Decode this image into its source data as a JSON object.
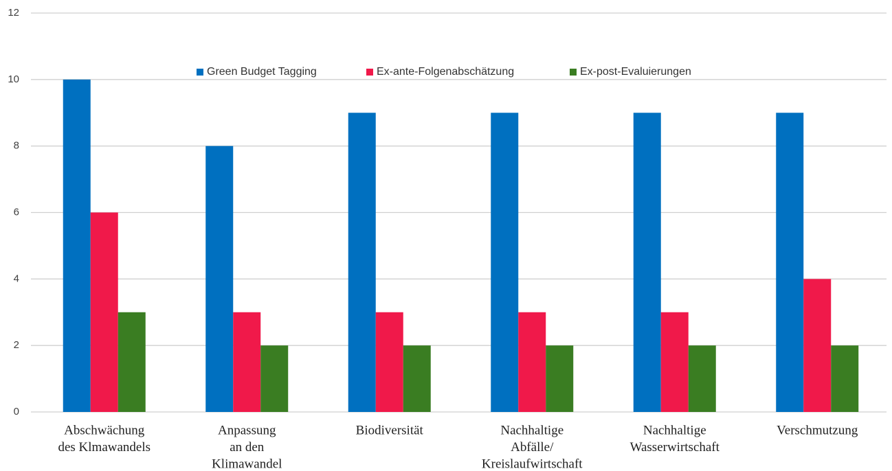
{
  "chart_data": {
    "type": "bar",
    "categories": [
      [
        "Abschwächung",
        "des Klmawandels"
      ],
      [
        "Anpassung",
        "an den",
        "Klimawandel"
      ],
      [
        "Biodiversität"
      ],
      [
        "Nachhaltige",
        "Abfälle/",
        "Kreislaufwirtschaft"
      ],
      [
        "Nachhaltige",
        "Wasserwirtschaft"
      ],
      [
        "Verschmutzung"
      ]
    ],
    "series": [
      {
        "name": "Green Budget Tagging",
        "color": "#0070c0",
        "values": [
          10,
          8,
          9,
          9,
          9,
          9
        ]
      },
      {
        "name": "Ex-ante-Folgenabschätzung",
        "color": "#f0194a",
        "values": [
          6,
          3,
          3,
          3,
          3,
          4
        ]
      },
      {
        "name": "Ex-post-Evaluierungen",
        "color": "#3a7d22",
        "values": [
          3,
          2,
          2,
          2,
          2,
          2
        ]
      }
    ],
    "ylim": [
      0,
      12
    ],
    "yticks": [
      0,
      2,
      4,
      6,
      8,
      10,
      12
    ],
    "grid": true,
    "legend": "top"
  }
}
